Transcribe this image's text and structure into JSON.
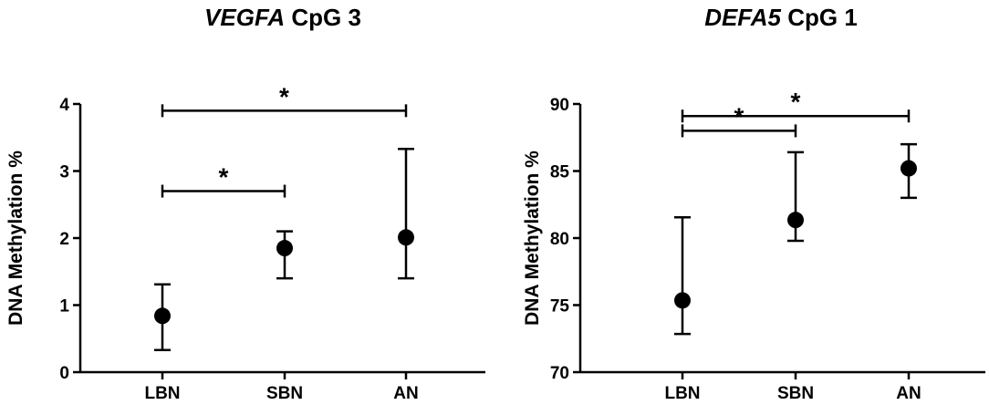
{
  "chart_data": [
    {
      "type": "scatter",
      "title_gene": "VEGFA",
      "title_rest": " CpG 3",
      "ylabel": "DNA Methylation %",
      "categories": [
        "LBN",
        "SBN",
        "AN"
      ],
      "values": [
        0.84,
        1.85,
        2.01
      ],
      "error_low": [
        0.33,
        1.4,
        1.4
      ],
      "error_high": [
        1.31,
        2.1,
        3.33
      ],
      "ylim": [
        0,
        4
      ],
      "yticks": [
        "0",
        "1",
        "2",
        "3",
        "4"
      ],
      "brackets": [
        {
          "from": 0,
          "to": 2,
          "y": 3.9,
          "label": "*"
        },
        {
          "from": 0,
          "to": 1,
          "y": 2.7,
          "label": "*"
        }
      ]
    },
    {
      "type": "scatter",
      "title_gene": "DEFA5",
      "title_rest": " CpG 1",
      "ylabel": "DNA Methylation %",
      "categories": [
        "LBN",
        "SBN",
        "AN"
      ],
      "values": [
        75.35,
        81.35,
        85.2
      ],
      "error_low": [
        72.85,
        79.8,
        83.0
      ],
      "error_high": [
        81.55,
        86.4,
        87.0
      ],
      "ylim": [
        70,
        90
      ],
      "yticks": [
        "70",
        "75",
        "80",
        "85",
        "90"
      ],
      "brackets": [
        {
          "from": 0,
          "to": 2,
          "y": 89.1,
          "label": "*"
        },
        {
          "from": 0,
          "to": 1,
          "y": 88.0,
          "label": "*"
        }
      ]
    }
  ]
}
